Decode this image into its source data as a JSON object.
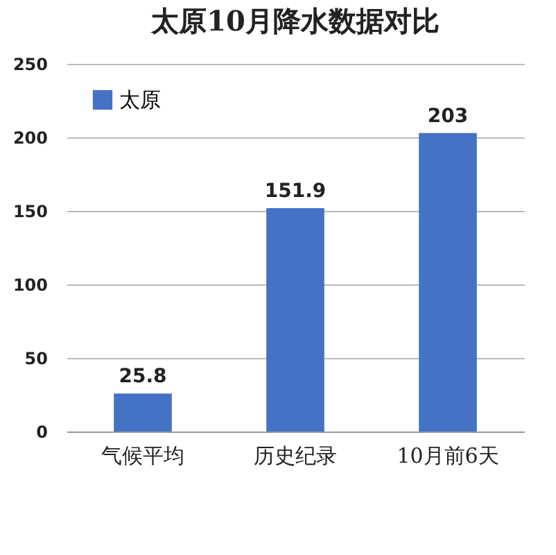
{
  "chart_data": {
    "type": "bar",
    "title": "太原10月降水数据对比",
    "categories": [
      "气候平均",
      "历史纪录",
      "10月前6天"
    ],
    "series": [
      {
        "name": "太原",
        "color": "#4472c4",
        "values": [
          25.8,
          151.9,
          203
        ]
      }
    ],
    "ylim": [
      0,
      250
    ],
    "yticks": [
      0,
      50,
      100,
      150,
      200,
      250
    ],
    "grid": "y",
    "legend": "top left",
    "data_labels": true
  }
}
